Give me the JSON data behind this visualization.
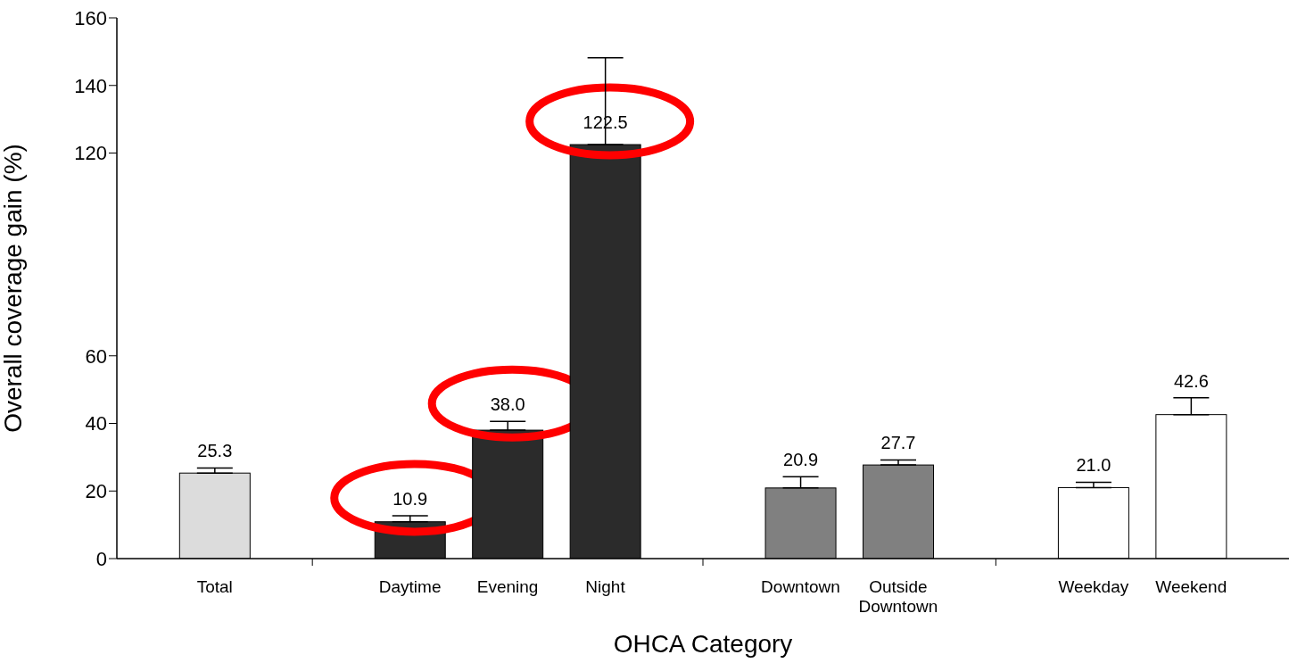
{
  "chart_data": {
    "type": "bar",
    "xlabel": "OHCA Category",
    "ylabel": "Overall coverage gain (%)",
    "categories": [
      "Total",
      null,
      "Daytime",
      "Evening",
      "Night",
      null,
      "Downtown",
      "Outside Downtown",
      null,
      "Weekday",
      "Weekend"
    ],
    "values": [
      25.3,
      null,
      10.9,
      38.0,
      122.5,
      null,
      20.9,
      27.7,
      null,
      21.0,
      42.6
    ],
    "value_labels": [
      "25.3",
      null,
      "10.9",
      "38.0",
      "122.5",
      null,
      "20.9",
      "27.7",
      null,
      "21.0",
      "42.6"
    ],
    "errors": [
      [
        25.3,
        26.8
      ],
      null,
      [
        10.9,
        12.7
      ],
      [
        38.0,
        40.6
      ],
      [
        122.5,
        148.2
      ],
      null,
      [
        20.9,
        24.2
      ],
      [
        27.7,
        29.2
      ],
      null,
      [
        21.0,
        22.6
      ],
      [
        42.6,
        47.6
      ]
    ],
    "colors": [
      "#dcdcdc",
      null,
      "#2b2b2b",
      "#2b2b2b",
      "#2b2b2b",
      null,
      "#808080",
      "#808080",
      null,
      "#ffffff",
      "#ffffff"
    ],
    "ylim": [
      0,
      160
    ],
    "yticks": [
      0,
      20,
      40,
      60,
      120,
      140,
      160
    ],
    "grid": false,
    "legend": false
  }
}
